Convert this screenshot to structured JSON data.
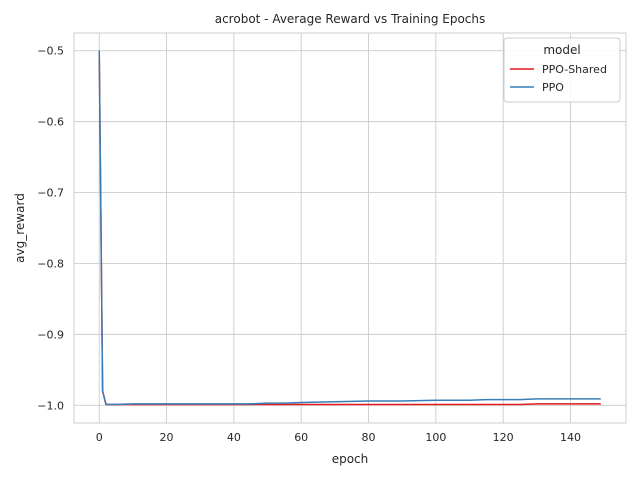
{
  "chart_data": {
    "type": "line",
    "title": "acrobot - Average Reward vs Training Epochs",
    "xlabel": "epoch",
    "ylabel": "avg_reward",
    "xlim": [
      -7.5,
      156.5
    ],
    "ylim": [
      -1.025,
      -0.475
    ],
    "xticks": [
      0,
      20,
      40,
      60,
      80,
      100,
      120,
      140
    ],
    "yticks": [
      -1.0,
      -0.9,
      -0.8,
      -0.7,
      -0.6,
      -0.5
    ],
    "xtick_labels": [
      "0",
      "20",
      "40",
      "60",
      "80",
      "100",
      "120",
      "140"
    ],
    "ytick_labels": [
      "−1.0",
      "−0.9",
      "−0.8",
      "−0.7",
      "−0.6",
      "−0.5"
    ],
    "grid": true,
    "legend": {
      "title": "model",
      "position": "upper-right"
    },
    "series": [
      {
        "name": "PPO-Shared",
        "color": "#e41a1c",
        "x": [
          0,
          1,
          2,
          5,
          10,
          20,
          30,
          40,
          50,
          60,
          70,
          80,
          90,
          100,
          110,
          120,
          125,
          130,
          140,
          149
        ],
        "y": [
          -0.5,
          -0.98,
          -0.999,
          -0.999,
          -0.999,
          -0.999,
          -0.999,
          -0.999,
          -0.999,
          -0.999,
          -0.999,
          -0.999,
          -0.999,
          -0.999,
          -0.999,
          -0.999,
          -0.999,
          -0.998,
          -0.998,
          -0.998
        ]
      },
      {
        "name": "PPO",
        "color": "#377eb8",
        "x": [
          0,
          1,
          2,
          5,
          10,
          20,
          30,
          40,
          45,
          50,
          55,
          60,
          70,
          80,
          90,
          100,
          110,
          115,
          120,
          125,
          130,
          140,
          149
        ],
        "y": [
          -0.5,
          -0.98,
          -0.999,
          -0.999,
          -0.998,
          -0.998,
          -0.998,
          -0.998,
          -0.998,
          -0.997,
          -0.997,
          -0.996,
          -0.995,
          -0.994,
          -0.994,
          -0.993,
          -0.993,
          -0.992,
          -0.992,
          -0.992,
          -0.991,
          -0.991,
          -0.991
        ]
      }
    ]
  }
}
